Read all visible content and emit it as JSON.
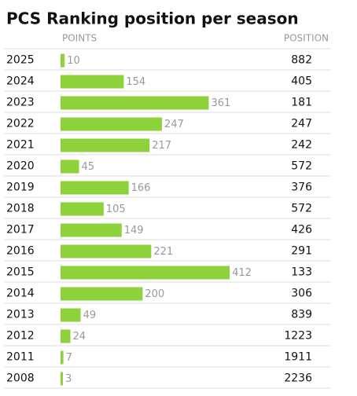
{
  "title": "PCS Ranking position per season",
  "headers": {
    "points": "POINTS",
    "position": "POSITION"
  },
  "rows": [
    {
      "season": "2025",
      "points": 10,
      "position": 882
    },
    {
      "season": "2024",
      "points": 154,
      "position": 405
    },
    {
      "season": "2023",
      "points": 361,
      "position": 181
    },
    {
      "season": "2022",
      "points": 247,
      "position": 247
    },
    {
      "season": "2021",
      "points": 217,
      "position": 242
    },
    {
      "season": "2020",
      "points": 45,
      "position": 572
    },
    {
      "season": "2019",
      "points": 166,
      "position": 376
    },
    {
      "season": "2018",
      "points": 105,
      "position": 572
    },
    {
      "season": "2017",
      "points": 149,
      "position": 426
    },
    {
      "season": "2016",
      "points": 221,
      "position": 291
    },
    {
      "season": "2015",
      "points": 412,
      "position": 133
    },
    {
      "season": "2014",
      "points": 200,
      "position": 306
    },
    {
      "season": "2013",
      "points": 49,
      "position": 839
    },
    {
      "season": "2012",
      "points": 24,
      "position": 1223
    },
    {
      "season": "2011",
      "points": 7,
      "position": 1911
    },
    {
      "season": "2008",
      "points": 3,
      "position": 2236
    }
  ]
}
